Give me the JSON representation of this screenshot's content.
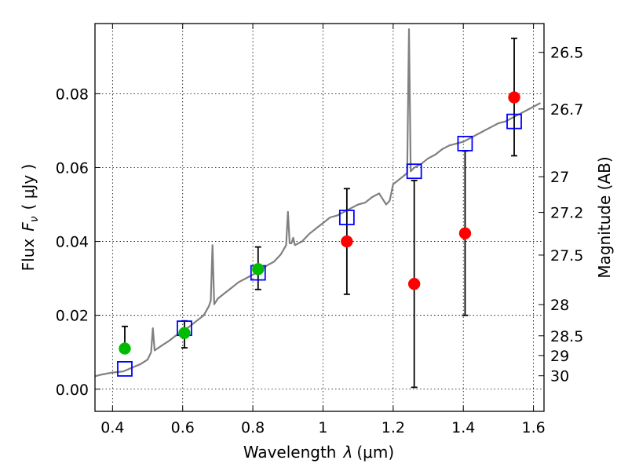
{
  "chart_data": {
    "type": "scatter",
    "xlabel_text": "Wavelength",
    "xlabel_symbol": "λ",
    "xlabel_unit": "(μm)",
    "ylabel_text": "Flux",
    "ylabel_symbol": "F",
    "ylabel_sub": "ν",
    "ylabel_unit": "( μJy )",
    "y2label": "Magnitude (AB)",
    "xlim": [
      0.35,
      1.63
    ],
    "ylim": [
      -0.006,
      0.099
    ],
    "grid": true,
    "x_ticks": [
      {
        "value": 0.4,
        "label": "0.4"
      },
      {
        "value": 0.6,
        "label": "0.6"
      },
      {
        "value": 0.8,
        "label": "0.8"
      },
      {
        "value": 1.0,
        "label": "1"
      },
      {
        "value": 1.2,
        "label": "1.2"
      },
      {
        "value": 1.4,
        "label": "1.4"
      },
      {
        "value": 1.6,
        "label": "1.6"
      }
    ],
    "y_ticks": [
      {
        "value": 0.0,
        "label": "0.00"
      },
      {
        "value": 0.02,
        "label": "0.02"
      },
      {
        "value": 0.04,
        "label": "0.04"
      },
      {
        "value": 0.06,
        "label": "0.06"
      },
      {
        "value": 0.08,
        "label": "0.08"
      }
    ],
    "mag_ticks": [
      {
        "value": 26.5,
        "label": "26.5"
      },
      {
        "value": 26.7,
        "label": "26.7"
      },
      {
        "value": 27,
        "label": "27"
      },
      {
        "value": 27.2,
        "label": "27.2"
      },
      {
        "value": 27.5,
        "label": "27.5"
      },
      {
        "value": 28,
        "label": "28"
      },
      {
        "value": 28.5,
        "label": "28.5"
      },
      {
        "value": 29,
        "label": "29"
      },
      {
        "value": 30,
        "label": "30"
      }
    ],
    "model_spectrum": {
      "color": "#808080",
      "points": [
        [
          0.35,
          0.0035
        ],
        [
          0.37,
          0.004
        ],
        [
          0.4,
          0.0045
        ],
        [
          0.43,
          0.0048
        ],
        [
          0.46,
          0.006
        ],
        [
          0.48,
          0.0068
        ],
        [
          0.5,
          0.008
        ],
        [
          0.51,
          0.01
        ],
        [
          0.515,
          0.0165
        ],
        [
          0.52,
          0.0105
        ],
        [
          0.54,
          0.0118
        ],
        [
          0.56,
          0.013
        ],
        [
          0.58,
          0.0145
        ],
        [
          0.6,
          0.0155
        ],
        [
          0.62,
          0.017
        ],
        [
          0.64,
          0.0185
        ],
        [
          0.66,
          0.02
        ],
        [
          0.675,
          0.0225
        ],
        [
          0.68,
          0.024
        ],
        [
          0.685,
          0.039
        ],
        [
          0.69,
          0.023
        ],
        [
          0.7,
          0.0245
        ],
        [
          0.72,
          0.026
        ],
        [
          0.74,
          0.0275
        ],
        [
          0.76,
          0.029
        ],
        [
          0.78,
          0.03
        ],
        [
          0.8,
          0.031
        ],
        [
          0.82,
          0.032
        ],
        [
          0.84,
          0.0335
        ],
        [
          0.86,
          0.0345
        ],
        [
          0.88,
          0.0365
        ],
        [
          0.895,
          0.039
        ],
        [
          0.9,
          0.048
        ],
        [
          0.905,
          0.0395
        ],
        [
          0.91,
          0.0395
        ],
        [
          0.915,
          0.041
        ],
        [
          0.92,
          0.039
        ],
        [
          0.94,
          0.04
        ],
        [
          0.96,
          0.042
        ],
        [
          0.98,
          0.0435
        ],
        [
          1.0,
          0.045
        ],
        [
          1.02,
          0.0465
        ],
        [
          1.04,
          0.047
        ],
        [
          1.06,
          0.048
        ],
        [
          1.08,
          0.049
        ],
        [
          1.1,
          0.05
        ],
        [
          1.12,
          0.0505
        ],
        [
          1.14,
          0.052
        ],
        [
          1.16,
          0.053
        ],
        [
          1.18,
          0.05
        ],
        [
          1.19,
          0.051
        ],
        [
          1.2,
          0.0555
        ],
        [
          1.22,
          0.057
        ],
        [
          1.24,
          0.0585
        ],
        [
          1.245,
          0.0975
        ],
        [
          1.25,
          0.059
        ],
        [
          1.26,
          0.06
        ],
        [
          1.28,
          0.061
        ],
        [
          1.3,
          0.0625
        ],
        [
          1.32,
          0.0635
        ],
        [
          1.34,
          0.065
        ],
        [
          1.36,
          0.066
        ],
        [
          1.38,
          0.0665
        ],
        [
          1.4,
          0.067
        ],
        [
          1.42,
          0.068
        ],
        [
          1.44,
          0.069
        ],
        [
          1.46,
          0.07
        ],
        [
          1.48,
          0.071
        ],
        [
          1.5,
          0.072
        ],
        [
          1.52,
          0.0725
        ],
        [
          1.54,
          0.0735
        ],
        [
          1.56,
          0.0745
        ],
        [
          1.58,
          0.0755
        ],
        [
          1.6,
          0.0765
        ],
        [
          1.62,
          0.0775
        ]
      ]
    },
    "series": [
      {
        "marker": "open-square",
        "color": "#0000ff",
        "x": [
          0.435,
          0.605,
          0.815,
          1.068,
          1.26,
          1.405,
          1.545
        ],
        "y": [
          0.0055,
          0.0165,
          0.0315,
          0.0465,
          0.059,
          0.0665,
          0.0725
        ]
      },
      {
        "marker": "circle",
        "color": "#00bb00",
        "x": [
          0.435,
          0.605,
          0.815
        ],
        "y": [
          0.011,
          0.0152,
          0.0325
        ],
        "err_low": [
          0.011,
          0.0112,
          0.027
        ],
        "err_high": [
          0.017,
          0.0185,
          0.0385
        ]
      },
      {
        "marker": "circle",
        "color": "#ff0000",
        "x": [
          1.068,
          1.26,
          1.405,
          1.545
        ],
        "y": [
          0.04,
          0.0285,
          0.0422,
          0.079
        ],
        "err_low": [
          0.0257,
          0.0005,
          0.02,
          0.0632
        ],
        "err_high": [
          0.0543,
          0.0565,
          0.0645,
          0.095
        ]
      }
    ]
  }
}
